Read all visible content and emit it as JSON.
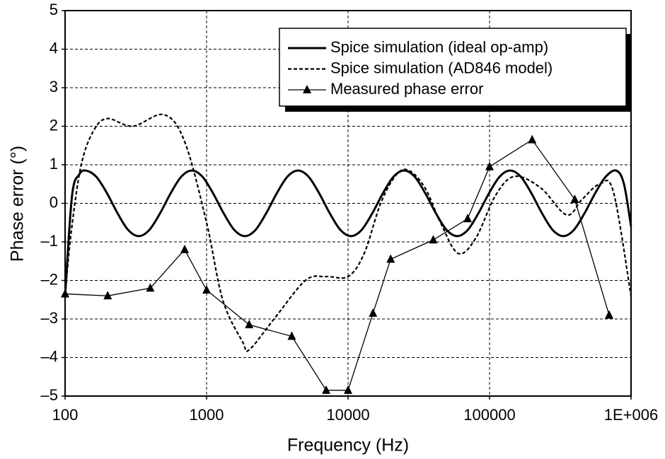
{
  "chart_data": {
    "type": "line",
    "xlabel": "Frequency (Hz)",
    "ylabel": "Phase error (°)",
    "xscale": "log",
    "xlim": [
      100,
      1000000
    ],
    "xticks": [
      100,
      1000,
      10000,
      100000,
      {
        "value": 1000000,
        "label": "1E+006"
      }
    ],
    "ylim": [
      -5,
      5
    ],
    "yticks": [
      {
        "value": -5,
        "label": "–5"
      },
      {
        "value": -4,
        "label": "–4"
      },
      {
        "value": -3,
        "label": "–3"
      },
      {
        "value": -2,
        "label": "–2"
      },
      {
        "value": -1,
        "label": "–1"
      },
      0,
      1,
      2,
      3,
      4,
      5
    ],
    "grid": true,
    "legend": "upper right",
    "series": [
      {
        "name": "Spice simulation (ideal op-amp)",
        "color": "#000000",
        "line_style": "solid",
        "x": [
          100,
          112,
          126,
          140,
          166,
          198,
          235,
          279,
          332,
          394,
          469,
          557,
          662,
          787,
          935,
          1112,
          1321,
          1570,
          1866,
          2218,
          2636,
          3133,
          3724,
          4426,
          5260,
          6252,
          7430,
          8831,
          10495,
          12474,
          14825,
          17620,
          20941,
          24889,
          29580,
          35156,
          41783,
          49659,
          59020,
          70146,
          83368,
          99083,
          117761,
          139959,
          166342,
          197697,
          234963,
          279254,
          331894,
          394457,
          468813,
          557186,
          662217,
          787046,
          891251,
          1000000
        ],
        "values": [
          -2.4,
          0.2,
          0.75,
          0.85,
          0.69,
          0.26,
          -0.26,
          -0.69,
          -0.85,
          -0.69,
          -0.26,
          0.26,
          0.69,
          0.85,
          0.69,
          0.26,
          -0.26,
          -0.69,
          -0.85,
          -0.69,
          -0.26,
          0.26,
          0.69,
          0.85,
          0.69,
          0.26,
          -0.26,
          -0.69,
          -0.85,
          -0.69,
          -0.26,
          0.26,
          0.69,
          0.85,
          0.69,
          0.26,
          -0.26,
          -0.69,
          -0.85,
          -0.69,
          -0.26,
          0.26,
          0.69,
          0.85,
          0.69,
          0.26,
          -0.26,
          -0.69,
          -0.85,
          -0.69,
          -0.26,
          0.26,
          0.69,
          0.85,
          0.5,
          -0.6
        ]
      },
      {
        "name": "Spice simulation (AD846 model)",
        "color": "#000000",
        "line_style": "dashed",
        "x": [
          100,
          110,
          130,
          160,
          200,
          300,
          500,
          700,
          1000,
          1300,
          1800,
          2000,
          3000,
          5000,
          7000,
          10000,
          13000,
          17000,
          22000,
          27000,
          35000,
          45000,
          60000,
          80000,
          110000,
          150000,
          230000,
          350000,
          450000,
          600000,
          750000,
          1000000
        ],
        "values": [
          -2.4,
          -0.8,
          1.0,
          1.9,
          2.2,
          2.0,
          2.3,
          1.6,
          -0.5,
          -2.5,
          -3.6,
          -3.8,
          -3.0,
          -2.0,
          -1.9,
          -1.9,
          -1.3,
          0,
          0.75,
          0.85,
          0.4,
          -0.5,
          -1.3,
          -0.9,
          0.2,
          0.7,
          0.4,
          -0.3,
          0.1,
          0.5,
          0.3,
          -2.4
        ]
      },
      {
        "name": "Measured phase error",
        "color": "#000000",
        "line_style": "solid",
        "marker": "triangle",
        "x": [
          100,
          200,
          400,
          700,
          1000,
          2000,
          4000,
          7000,
          10000,
          15000,
          20000,
          40000,
          70000,
          100000,
          200000,
          400000,
          700000
        ],
        "values": [
          -2.35,
          -2.4,
          -2.2,
          -1.2,
          -2.25,
          -3.15,
          -3.45,
          -4.85,
          -4.85,
          -2.85,
          -1.45,
          -0.95,
          -0.4,
          0.95,
          1.65,
          0.1,
          -2.9
        ]
      }
    ]
  }
}
